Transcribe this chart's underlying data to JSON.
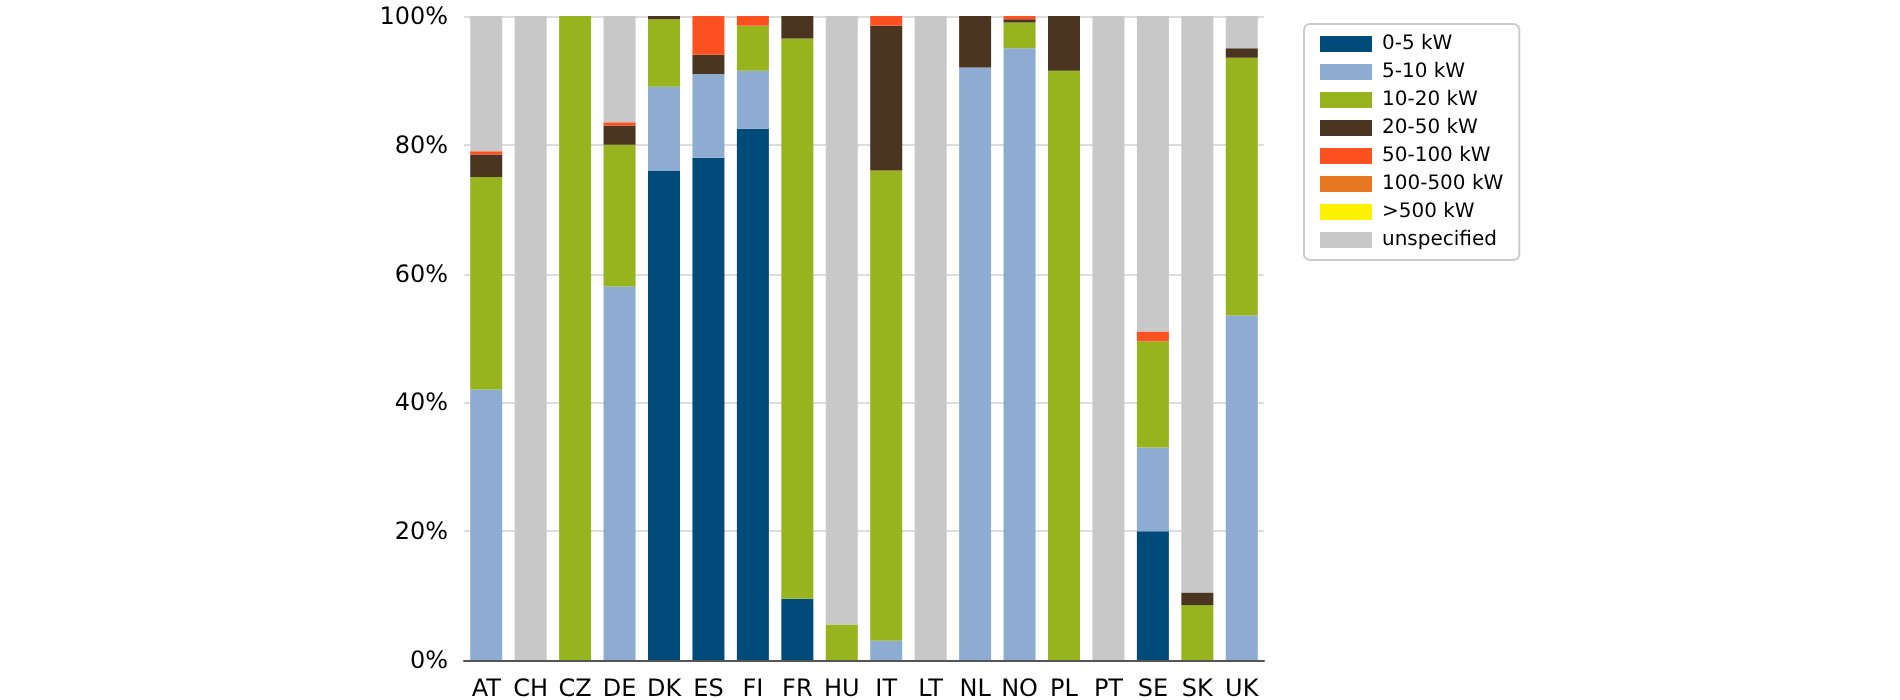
{
  "chart_data": {
    "type": "bar",
    "stacked": true,
    "categories": [
      "AT",
      "CH",
      "CZ",
      "DE",
      "DK",
      "ES",
      "FI",
      "FR",
      "HU",
      "IT",
      "LT",
      "NL",
      "NO",
      "PL",
      "PT",
      "SE",
      "SK",
      "UK"
    ],
    "series": [
      {
        "name": "0-5 kW",
        "color": "#004b7a",
        "values": [
          null,
          null,
          null,
          null,
          76,
          78,
          82.5,
          9.5,
          null,
          null,
          null,
          null,
          null,
          null,
          null,
          20,
          null,
          null
        ]
      },
      {
        "name": "5-10 kW",
        "color": "#8eabd1",
        "values": [
          42,
          null,
          null,
          58,
          13,
          13,
          9,
          null,
          null,
          3,
          null,
          92,
          95,
          null,
          null,
          13,
          null,
          53.5
        ]
      },
      {
        "name": "10-20 kW",
        "color": "#97b41f",
        "values": [
          33,
          null,
          100,
          22,
          10.5,
          null,
          7,
          87,
          5.5,
          73,
          null,
          null,
          4,
          91.5,
          null,
          16.5,
          8.5,
          40
        ]
      },
      {
        "name": "20-50 kW",
        "color": "#4a3520",
        "values": [
          3.5,
          null,
          null,
          3,
          0.5,
          3,
          null,
          3.5,
          null,
          22.5,
          null,
          8,
          0.5,
          8.5,
          null,
          null,
          2,
          1.5
        ]
      },
      {
        "name": "50-100 kW",
        "color": "#fe5122",
        "values": [
          0.5,
          null,
          null,
          0.5,
          null,
          6,
          1.5,
          null,
          null,
          1.5,
          null,
          null,
          0.5,
          null,
          null,
          1.5,
          null,
          null
        ]
      },
      {
        "name": "100-500 kW",
        "color": "#e87722",
        "values": [
          null,
          null,
          null,
          null,
          null,
          null,
          null,
          null,
          null,
          null,
          null,
          null,
          null,
          null,
          null,
          null,
          null,
          null
        ]
      },
      {
        "name": ">500 kW",
        "color": "#fef200",
        "values": [
          null,
          null,
          null,
          null,
          null,
          null,
          null,
          null,
          null,
          null,
          null,
          null,
          null,
          null,
          null,
          null,
          null,
          null
        ]
      },
      {
        "name": "unspecified",
        "color": "#c8c8c8",
        "values": [
          21,
          100,
          null,
          16.5,
          null,
          null,
          null,
          null,
          94.5,
          null,
          100,
          null,
          null,
          null,
          100,
          49,
          89.5,
          5
        ]
      }
    ],
    "ylim": [
      0,
      100
    ],
    "yticks": [
      {
        "value": 0,
        "label": "0%"
      },
      {
        "value": 20,
        "label": "20%"
      },
      {
        "value": 40,
        "label": "40%"
      },
      {
        "value": 60,
        "label": "60%"
      },
      {
        "value": 80,
        "label": "80%"
      },
      {
        "value": 100,
        "label": "100%"
      }
    ],
    "grid": "y",
    "legend": "top right"
  }
}
